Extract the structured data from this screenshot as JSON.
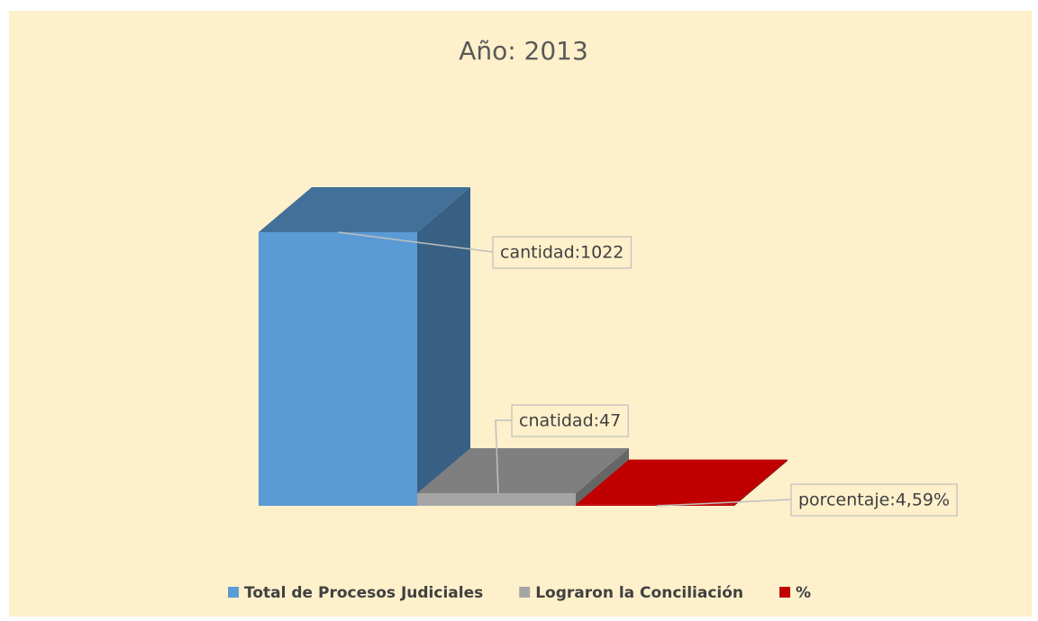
{
  "chart_data": {
    "type": "bar3d",
    "title": "Año: 2013",
    "series": [
      {
        "name": "Total de Procesos Judiciales",
        "color": "#5b9bd5",
        "values": [
          1022
        ],
        "value_labels": [
          "cantidad:1022"
        ]
      },
      {
        "name": "Lograron la Conciliación",
        "color": "#a5a5a5",
        "values": [
          47
        ],
        "value_labels": [
          "cnatidad:47"
        ]
      },
      {
        "name": "%",
        "color": "#c00000",
        "values": [
          4.59
        ],
        "value_labels": [
          "porcentaje:4,59%"
        ]
      }
    ]
  }
}
